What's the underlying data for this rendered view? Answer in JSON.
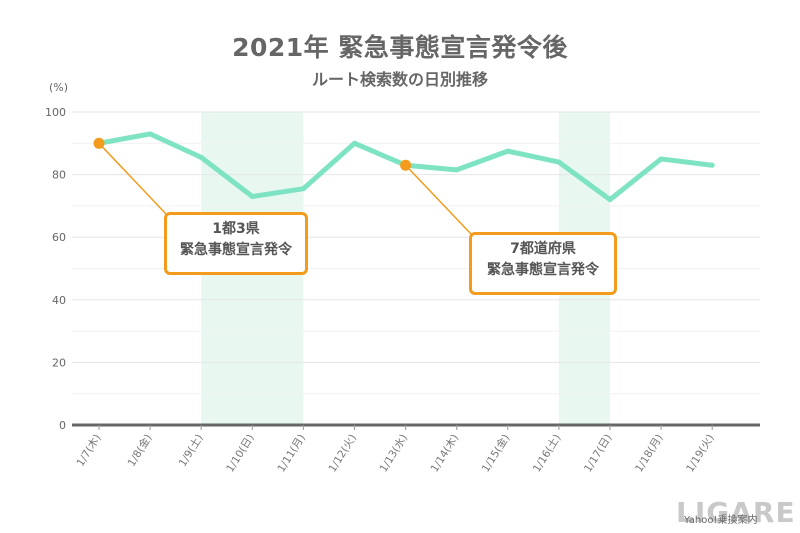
{
  "chart_data": {
    "type": "line",
    "title": "2021年 緊急事態宣言発令後",
    "subtitle": "ルート検索数の日別推移",
    "ylabel": "(%)",
    "xlabel": "",
    "ylim": [
      0,
      100
    ],
    "yticks": [
      0,
      20,
      40,
      60,
      80,
      100
    ],
    "grid": true,
    "categories": [
      "1/7(木)",
      "1/8(金)",
      "1/9(土)",
      "1/10(日)",
      "1/11(月)",
      "1/12(火)",
      "1/13(水)",
      "1/14(木)",
      "1/15(金)",
      "1/16(土)",
      "1/17(日)",
      "1/18(月)",
      "1/19(火)"
    ],
    "series": [
      {
        "values": [
          90,
          93,
          85.5,
          73,
          75.5,
          90,
          83,
          81.5,
          87.5,
          84,
          72,
          85,
          83
        ]
      }
    ],
    "shaded_ranges": [
      [
        "1/9(土)",
        "1/11(月)"
      ],
      [
        "1/16(土)",
        "1/17(日)"
      ]
    ],
    "markers": [
      {
        "category": "1/7(木)",
        "value": 90
      },
      {
        "category": "1/13(水)",
        "value": 83
      }
    ],
    "annotations": [
      {
        "lines": [
          "1都3県",
          "緊急事態宣言発令"
        ],
        "target": "1/7(木)"
      },
      {
        "lines": [
          "7都道府県",
          "緊急事態宣言発令"
        ],
        "target": "1/13(水)"
      }
    ],
    "colors": {
      "line": "#7de3c3",
      "shade": "#e8f8f1",
      "annotation": "#f29b1d",
      "grid": "#e6e6e6",
      "axis": "#666666"
    }
  },
  "credit": "Yahoo!乗換案内",
  "watermark": "LIGARE"
}
